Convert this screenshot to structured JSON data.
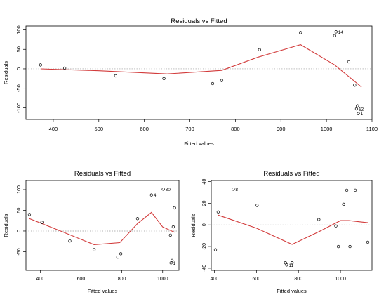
{
  "chart_data": [
    {
      "type": "scatter",
      "title": "Residuals vs Fitted",
      "xlabel": "Fitted values",
      "ylabel": "Residuals",
      "xlim": [
        340,
        1100
      ],
      "ylim": [
        -130,
        110
      ],
      "x_ticks": [
        "400",
        "500",
        "600",
        "700",
        "800",
        "900",
        "1000",
        "1100"
      ],
      "y_ticks": [
        "-100",
        "-50",
        "0",
        "50",
        "100"
      ],
      "points": [
        {
          "x": 372,
          "y": 10
        },
        {
          "x": 425,
          "y": 2
        },
        {
          "x": 537,
          "y": -18
        },
        {
          "x": 643,
          "y": -25
        },
        {
          "x": 750,
          "y": -38
        },
        {
          "x": 770,
          "y": -30
        },
        {
          "x": 853,
          "y": 49
        },
        {
          "x": 943,
          "y": 93
        },
        {
          "x": 1018,
          "y": 85
        },
        {
          "x": 1021,
          "y": 95,
          "label": "14"
        },
        {
          "x": 1049,
          "y": 18
        },
        {
          "x": 1062,
          "y": -42
        },
        {
          "x": 1068,
          "y": -95
        },
        {
          "x": 1066,
          "y": -103,
          "label": "12"
        },
        {
          "x": 1074,
          "y": -108
        },
        {
          "x": 1070,
          "y": -115,
          "label": "1"
        }
      ],
      "smooth_line": {
        "x": [
          372,
          500,
          650,
          770,
          850,
          943,
          1018,
          1077
        ],
        "y": [
          0,
          -5,
          -13,
          -4,
          30,
          62,
          10,
          -47
        ]
      }
    },
    {
      "type": "scatter",
      "title": "Residuals vs Fitted",
      "xlabel": "Fitted values",
      "ylabel": "Residuals",
      "xlim": [
        330,
        1080
      ],
      "ylim": [
        -95,
        122
      ],
      "x_ticks": [
        "400",
        "600",
        "800",
        "1000"
      ],
      "y_ticks": [
        "-50",
        "0",
        "50",
        "100"
      ],
      "points": [
        {
          "x": 347,
          "y": 40
        },
        {
          "x": 408,
          "y": 21
        },
        {
          "x": 545,
          "y": -24
        },
        {
          "x": 664,
          "y": -45
        },
        {
          "x": 780,
          "y": -63
        },
        {
          "x": 795,
          "y": -55
        },
        {
          "x": 877,
          "y": 30
        },
        {
          "x": 945,
          "y": 87,
          "label": "4"
        },
        {
          "x": 1003,
          "y": 101,
          "label": "30"
        },
        {
          "x": 1038,
          "y": -10
        },
        {
          "x": 1052,
          "y": 10
        },
        {
          "x": 1058,
          "y": 56
        },
        {
          "x": 1046,
          "y": -71
        },
        {
          "x": 1041,
          "y": -77,
          "label": "1"
        }
      ],
      "smooth_line": {
        "x": [
          347,
          500,
          664,
          790,
          877,
          945,
          1000,
          1058
        ],
        "y": [
          30,
          0,
          -33,
          -28,
          18,
          45,
          10,
          -3
        ]
      }
    },
    {
      "type": "scatter",
      "title": "Residuals vs Fitted",
      "xlabel": "Fitted values",
      "ylabel": "Residuals",
      "xlim": [
        385,
        1150
      ],
      "ylim": [
        -42,
        41
      ],
      "x_ticks": [
        "400",
        "600",
        "800",
        "1000"
      ],
      "y_ticks": [
        "-40",
        "-20",
        "0",
        "20",
        "40"
      ],
      "points": [
        {
          "x": 405,
          "y": -23
        },
        {
          "x": 418,
          "y": 12
        },
        {
          "x": 490,
          "y": 33,
          "label": "8"
        },
        {
          "x": 603,
          "y": 18
        },
        {
          "x": 738,
          "y": -35
        },
        {
          "x": 744,
          "y": -37,
          "label": "11"
        },
        {
          "x": 770,
          "y": -35
        },
        {
          "x": 897,
          "y": 5
        },
        {
          "x": 978,
          "y": -1
        },
        {
          "x": 990,
          "y": -20
        },
        {
          "x": 1015,
          "y": 19
        },
        {
          "x": 1030,
          "y": 32
        },
        {
          "x": 1045,
          "y": -20
        },
        {
          "x": 1070,
          "y": 32
        },
        {
          "x": 1130,
          "y": -16
        }
      ],
      "smooth_line": {
        "x": [
          418,
          600,
          770,
          900,
          1000,
          1040,
          1130
        ],
        "y": [
          9,
          -3,
          -18,
          -6,
          4,
          4,
          2
        ]
      }
    }
  ]
}
